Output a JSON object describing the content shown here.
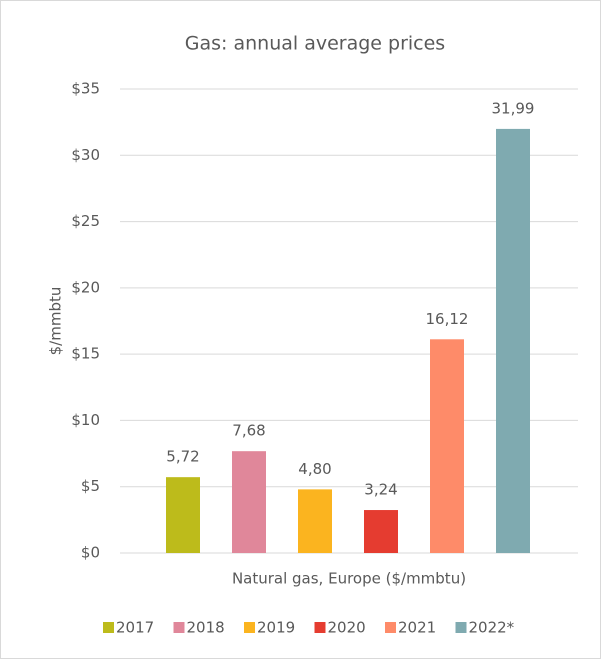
{
  "chart_data": {
    "type": "bar",
    "title": "Gas: annual average prices",
    "y_label": "$/mmbtu",
    "categories": [
      "Natural gas, Europe ($/mmbtu)"
    ],
    "series": [
      {
        "name": "2017",
        "color": "#bdbb1b",
        "values": [
          5.72
        ],
        "value_labels": [
          "5,72"
        ]
      },
      {
        "name": "2018",
        "color": "#e0879a",
        "values": [
          7.68
        ],
        "value_labels": [
          "7,68"
        ]
      },
      {
        "name": "2019",
        "color": "#fbb41f",
        "values": [
          4.8
        ],
        "value_labels": [
          "4,80"
        ]
      },
      {
        "name": "2020",
        "color": "#e53c30",
        "values": [
          3.24
        ],
        "value_labels": [
          "3,24"
        ]
      },
      {
        "name": "2021",
        "color": "#fe8b69",
        "values": [
          16.12
        ],
        "value_labels": [
          "16,12"
        ]
      },
      {
        "name": "2022*",
        "color": "#7faab0",
        "values": [
          31.99
        ],
        "value_labels": [
          "31,99"
        ]
      }
    ],
    "ylim": [
      0,
      35
    ],
    "yticks": [
      {
        "value": 0,
        "label": "$0"
      },
      {
        "value": 5,
        "label": "$5"
      },
      {
        "value": 10,
        "label": "$10"
      },
      {
        "value": 15,
        "label": "$15"
      },
      {
        "value": 20,
        "label": "$20"
      },
      {
        "value": 25,
        "label": "$25"
      },
      {
        "value": 30,
        "label": "$30"
      },
      {
        "value": 35,
        "label": "$35"
      }
    ],
    "grid": true,
    "legend": "bottom"
  }
}
